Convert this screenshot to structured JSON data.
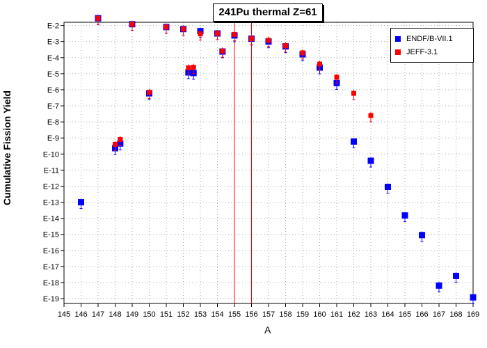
{
  "chart_data": {
    "type": "scatter",
    "title": "241Pu thermal Z=61",
    "xlabel": "A",
    "ylabel": "Cumulative Fission Yield",
    "xlim": [
      145,
      169
    ],
    "x_ticks": [
      145,
      146,
      147,
      148,
      149,
      150,
      151,
      152,
      153,
      154,
      155,
      156,
      157,
      158,
      159,
      160,
      161,
      162,
      163,
      164,
      165,
      166,
      167,
      168,
      169
    ],
    "y_scale": "log",
    "ylim_exponent": [
      -19.3,
      -1.8
    ],
    "y_ticks": [
      "E-2",
      "E-3",
      "E-4",
      "E-5",
      "E-6",
      "E-7",
      "E-8",
      "E-9",
      "E-10",
      "E-11",
      "E-12",
      "E-13",
      "E-14",
      "E-15",
      "E-16",
      "E-17",
      "E-18",
      "E-19"
    ],
    "grid": true,
    "legend_position": "top-right",
    "vertical_lines_x": [
      155,
      156
    ],
    "series": [
      {
        "name": "ENDF/B-VII.1",
        "color": "#0000ff",
        "points": [
          {
            "x": 146,
            "y": "1.0E-13"
          },
          {
            "x": 147,
            "y": "2.8E-2"
          },
          {
            "x": 148,
            "y": "2.3E-10"
          },
          {
            "x": 148.3,
            "y": "4.5E-10"
          },
          {
            "x": 149,
            "y": "1.2E-2"
          },
          {
            "x": 150,
            "y": "6.0E-7"
          },
          {
            "x": 151,
            "y": "8.0E-3"
          },
          {
            "x": 152,
            "y": "6.0E-3"
          },
          {
            "x": 152.3,
            "y": "1.2E-5"
          },
          {
            "x": 152.6,
            "y": "1.1E-5"
          },
          {
            "x": 153,
            "y": "4.5E-3"
          },
          {
            "x": 154,
            "y": "3.2E-3"
          },
          {
            "x": 154.3,
            "y": "2.4E-4"
          },
          {
            "x": 155,
            "y": "2.4E-3"
          },
          {
            "x": 156,
            "y": "1.5E-3"
          },
          {
            "x": 157,
            "y": "1.0E-3"
          },
          {
            "x": 158,
            "y": "5.0E-4"
          },
          {
            "x": 159,
            "y": "1.6E-4"
          },
          {
            "x": 160,
            "y": "2.4E-5"
          },
          {
            "x": 161,
            "y": "2.6E-6"
          },
          {
            "x": 162,
            "y": "6.0E-10"
          },
          {
            "x": 163,
            "y": "3.8E-11"
          },
          {
            "x": 164,
            "y": "9.0E-13"
          },
          {
            "x": 165,
            "y": "1.5E-14"
          },
          {
            "x": 166,
            "y": "9.0E-16"
          },
          {
            "x": 167,
            "y": "6.5E-19"
          },
          {
            "x": 168,
            "y": "2.6E-18"
          },
          {
            "x": 169,
            "y": "1.2E-19"
          }
        ]
      },
      {
        "name": "JEFF-3.1",
        "color": "#ff0000",
        "points": [
          {
            "x": 147,
            "y": "2.8E-2"
          },
          {
            "x": 148,
            "y": "4.0E-10"
          },
          {
            "x": 148.3,
            "y": "8.0E-10"
          },
          {
            "x": 149,
            "y": "1.2E-2"
          },
          {
            "x": 150,
            "y": "7.0E-7"
          },
          {
            "x": 151,
            "y": "8.0E-3"
          },
          {
            "x": 152,
            "y": "6.0E-3"
          },
          {
            "x": 152.3,
            "y": "2.3E-5"
          },
          {
            "x": 152.6,
            "y": "2.5E-5"
          },
          {
            "x": 153,
            "y": "3.0E-3"
          },
          {
            "x": 154,
            "y": "3.2E-3"
          },
          {
            "x": 154.3,
            "y": "2.6E-4"
          },
          {
            "x": 155,
            "y": "2.8E-3"
          },
          {
            "x": 156,
            "y": "1.5E-3"
          },
          {
            "x": 157,
            "y": "1.2E-3"
          },
          {
            "x": 158,
            "y": "5.5E-4"
          },
          {
            "x": 159,
            "y": "2.0E-4"
          },
          {
            "x": 160,
            "y": "4.0E-5"
          },
          {
            "x": 161,
            "y": "6.0E-6"
          },
          {
            "x": 162,
            "y": "6.0E-7"
          },
          {
            "x": 163,
            "y": "2.5E-8"
          }
        ]
      }
    ]
  }
}
